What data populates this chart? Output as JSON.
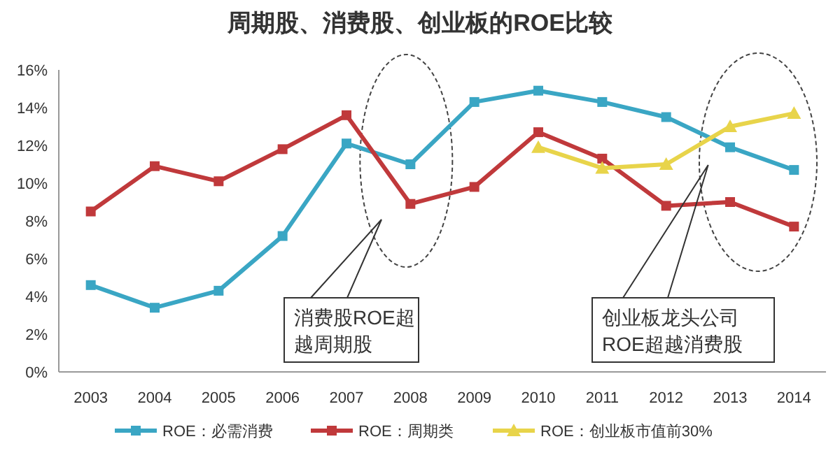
{
  "chart_data": {
    "type": "line",
    "title": "周期股、消费股、创业板的ROE比较",
    "categories": [
      "2003",
      "2004",
      "2005",
      "2006",
      "2007",
      "2008",
      "2009",
      "2010",
      "2011",
      "2012",
      "2013",
      "2014"
    ],
    "series": [
      {
        "name": "ROE：必需消费",
        "color": "#3aa6c4",
        "marker": "square",
        "values": [
          4.6,
          3.4,
          4.3,
          7.2,
          12.1,
          11.0,
          14.3,
          14.9,
          14.3,
          13.5,
          11.9,
          10.7
        ]
      },
      {
        "name": "ROE：周期类",
        "color": "#c0393b",
        "marker": "square",
        "values": [
          8.5,
          10.9,
          10.1,
          11.8,
          13.6,
          8.9,
          9.8,
          12.7,
          11.3,
          8.8,
          9.0,
          7.7
        ]
      },
      {
        "name": "ROE：创业板市值前30%",
        "color": "#e8d44a",
        "marker": "triangle",
        "values": [
          null,
          null,
          null,
          null,
          null,
          null,
          null,
          11.9,
          10.8,
          11.0,
          13.0,
          13.7
        ]
      }
    ],
    "ylim": [
      0,
      16
    ],
    "yticks": [
      {
        "value": 0,
        "label": "0%"
      },
      {
        "value": 2,
        "label": "2%"
      },
      {
        "value": 4,
        "label": "4%"
      },
      {
        "value": 6,
        "label": "6%"
      },
      {
        "value": 8,
        "label": "8%"
      },
      {
        "value": 10,
        "label": "10%"
      },
      {
        "value": 12,
        "label": "12%"
      },
      {
        "value": 14,
        "label": "14%"
      },
      {
        "value": 16,
        "label": "16%"
      }
    ],
    "annotations": [
      "消费股ROE超越周期股",
      "创业板龙头公司ROE超越消费股"
    ],
    "legend": "bottom",
    "grid": false
  }
}
